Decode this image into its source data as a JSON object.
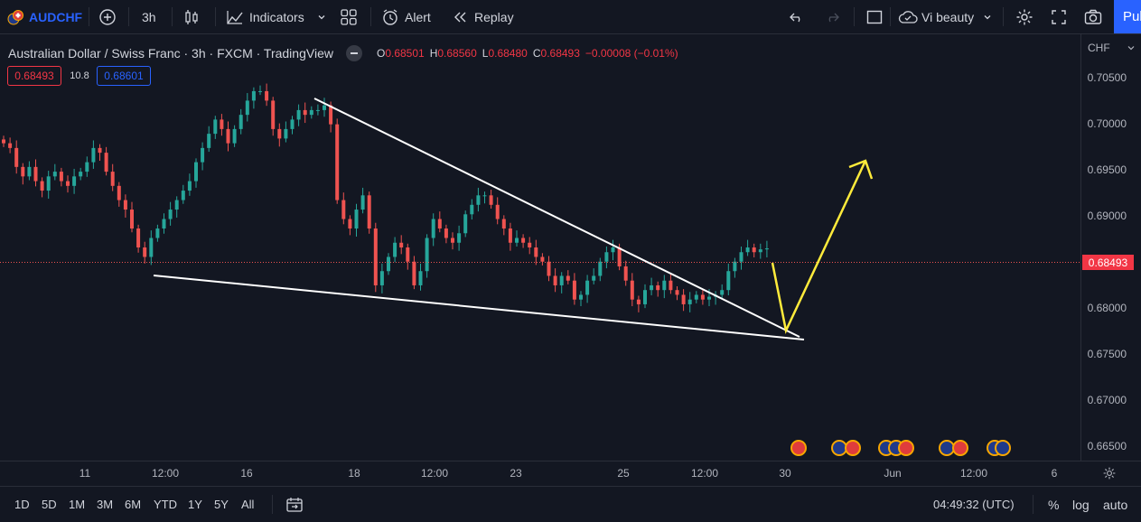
{
  "toolbar": {
    "symbol": "AUDCHF",
    "interval": "3h",
    "indicators_label": "Indicators",
    "alert_label": "Alert",
    "replay_label": "Replay",
    "layout_name": "Vi beauty",
    "publish_label": "Publish"
  },
  "legend": {
    "title": "Australian Dollar / Swiss Franc · 3h · FXCM · TradingView",
    "o_label": "O",
    "o": "0.68501",
    "h_label": "H",
    "h": "0.68560",
    "l_label": "L",
    "l": "0.68480",
    "c_label": "C",
    "c": "0.68493",
    "change": "−0.00008 (−0.01%)",
    "sell_price": "0.68493",
    "spread": "10.8",
    "buy_price": "0.68601"
  },
  "price_axis": {
    "currency": "CHF",
    "current_price": "0.68493",
    "labels": [
      "0.70500",
      "0.70000",
      "0.69500",
      "0.69000",
      "0.68500",
      "0.68000",
      "0.67500",
      "0.67000",
      "0.66500"
    ]
  },
  "time_axis": {
    "labels": [
      "11",
      "12:00",
      "16",
      "18",
      "12:00",
      "23",
      "25",
      "12:00",
      "30",
      "Jun",
      "12:00",
      "6"
    ]
  },
  "bottom": {
    "ranges": [
      "1D",
      "5D",
      "1M",
      "3M",
      "6M",
      "YTD",
      "1Y",
      "5Y",
      "All"
    ],
    "clock": "04:49:32 (UTC)",
    "percent_label": "%",
    "log_label": "log",
    "auto_label": "auto"
  },
  "colors": {
    "up": "#26a69a",
    "down": "#ef5350",
    "background": "#131722",
    "accent": "#2962ff",
    "arrow": "#ffeb3b",
    "trendline": "#ffffff"
  },
  "chart_data": {
    "type": "candlestick",
    "y_range": [
      0.6625,
      0.7075
    ],
    "current_price": 0.68493,
    "close_series": [
      0.696,
      0.6955,
      0.6935,
      0.6925,
      0.6935,
      0.692,
      0.691,
      0.6925,
      0.693,
      0.692,
      0.6915,
      0.6925,
      0.693,
      0.694,
      0.6955,
      0.695,
      0.693,
      0.6915,
      0.69,
      0.689,
      0.687,
      0.685,
      0.684,
      0.686,
      0.687,
      0.688,
      0.689,
      0.69,
      0.691,
      0.692,
      0.694,
      0.6955,
      0.697,
      0.6985,
      0.6975,
      0.696,
      0.6975,
      0.699,
      0.7005,
      0.7015,
      0.7015,
      0.7005,
      0.6975,
      0.6965,
      0.6975,
      0.6985,
      0.6995,
      0.699,
      0.6995,
      0.6995,
      0.7,
      0.698,
      0.69,
      0.688,
      0.687,
      0.689,
      0.6905,
      0.687,
      0.681,
      0.6825,
      0.684,
      0.6855,
      0.685,
      0.6835,
      0.681,
      0.6825,
      0.686,
      0.688,
      0.687,
      0.686,
      0.6855,
      0.6865,
      0.6885,
      0.6895,
      0.6905,
      0.6905,
      0.6895,
      0.688,
      0.687,
      0.6855,
      0.686,
      0.6855,
      0.685,
      0.684,
      0.6835,
      0.682,
      0.681,
      0.682,
      0.6815,
      0.6795,
      0.68,
      0.6815,
      0.682,
      0.6835,
      0.6845,
      0.685,
      0.683,
      0.6815,
      0.6795,
      0.679,
      0.6805,
      0.681,
      0.6805,
      0.6815,
      0.6805,
      0.68,
      0.679,
      0.6795,
      0.68,
      0.6795,
      0.6798,
      0.68,
      0.6805,
      0.6825,
      0.6835,
      0.6845,
      0.685,
      0.6845,
      0.6848,
      0.6849
    ]
  }
}
